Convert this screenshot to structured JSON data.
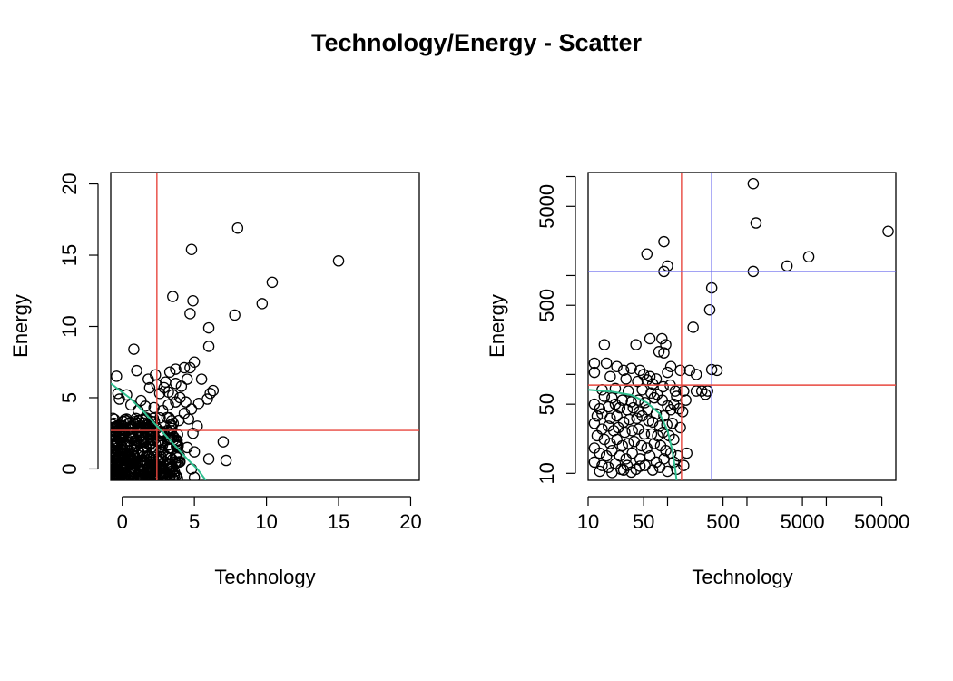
{
  "title": "Technology/Energy - Scatter",
  "colors": {
    "ref_red": "#e8473f",
    "ref_blue": "#6a6aee",
    "curve": "#2fbf8f",
    "axis": "#000000"
  },
  "chart_data": [
    {
      "type": "scatter",
      "scale": "linear",
      "xlabel": "Technology",
      "ylabel": "Energy",
      "xlim": [
        -0.8,
        20.6
      ],
      "ylim": [
        -0.8,
        20.8
      ],
      "xticks": [
        0,
        5,
        10,
        15,
        20
      ],
      "yticks": [
        0,
        5,
        10,
        15,
        20
      ],
      "xtick_labels": [
        "0",
        "5",
        "10",
        "15",
        "20"
      ],
      "ytick_labels": [
        "0",
        "5",
        "10",
        "15",
        "20"
      ],
      "vlines": [
        {
          "x": 2.4,
          "color": "red"
        }
      ],
      "hlines": [
        {
          "y": 2.7,
          "color": "red"
        }
      ],
      "curve": {
        "color": "curve",
        "x": [
          -0.8,
          0.5,
          1.5,
          2.5,
          3.5,
          4.5,
          5.2,
          5.8
        ],
        "y": [
          6.0,
          5.0,
          4.0,
          2.9,
          1.8,
          0.7,
          0.0,
          -0.8
        ]
      },
      "points": [
        [
          15.0,
          14.6
        ],
        [
          8.0,
          16.9
        ],
        [
          4.8,
          15.4
        ],
        [
          10.4,
          13.1
        ],
        [
          3.5,
          12.1
        ],
        [
          9.7,
          11.6
        ],
        [
          4.9,
          11.8
        ],
        [
          4.7,
          10.9
        ],
        [
          7.8,
          10.8
        ],
        [
          6.0,
          9.9
        ],
        [
          6.0,
          8.6
        ],
        [
          0.8,
          8.4
        ],
        [
          1.0,
          6.9
        ],
        [
          -0.4,
          6.5
        ],
        [
          5.0,
          7.5
        ],
        [
          4.7,
          7.1
        ],
        [
          4.3,
          7.1
        ],
        [
          3.7,
          7.0
        ],
        [
          3.3,
          6.8
        ],
        [
          2.3,
          6.6
        ],
        [
          5.5,
          6.3
        ],
        [
          4.5,
          6.3
        ],
        [
          3.0,
          6.1
        ],
        [
          6.3,
          5.5
        ],
        [
          6.1,
          5.3
        ],
        [
          5.9,
          4.9
        ],
        [
          4.0,
          5.0
        ],
        [
          3.7,
          4.7
        ],
        [
          3.2,
          4.5
        ],
        [
          5.3,
          4.6
        ],
        [
          4.8,
          4.2
        ],
        [
          5.2,
          3.0
        ],
        [
          4.9,
          2.5
        ],
        [
          4.6,
          3.5
        ],
        [
          4.3,
          3.9
        ],
        [
          3.8,
          2.0
        ],
        [
          7.0,
          1.9
        ],
        [
          6.0,
          0.7
        ],
        [
          7.2,
          0.6
        ],
        [
          5.0,
          1.2
        ],
        [
          4.5,
          1.5
        ],
        [
          4.0,
          0.5
        ],
        [
          4.8,
          0.0
        ],
        [
          5.0,
          -0.6
        ],
        [
          3.6,
          -0.5
        ],
        [
          0.3,
          5.2
        ],
        [
          1.3,
          4.8
        ],
        [
          1.9,
          5.7
        ],
        [
          2.6,
          5.3
        ],
        [
          2.2,
          4.3
        ],
        [
          2.8,
          4.1
        ],
        [
          3.1,
          3.6
        ],
        [
          1.1,
          4.1
        ],
        [
          0.6,
          4.5
        ],
        [
          -0.3,
          5.3
        ],
        [
          -0.2,
          4.9
        ],
        [
          1.6,
          4.4
        ],
        [
          2.9,
          5.7
        ],
        [
          3.2,
          5.4
        ],
        [
          3.7,
          6.0
        ],
        [
          4.4,
          4.7
        ],
        [
          4.1,
          5.8
        ],
        [
          2.4,
          5.9
        ],
        [
          1.8,
          6.3
        ],
        [
          3.5,
          5.2
        ]
      ],
      "dense_cluster": {
        "x_range": [
          -0.7,
          4.0
        ],
        "y_range": [
          -0.7,
          3.6
        ],
        "count": 420
      }
    },
    {
      "type": "scatter",
      "scale": "log",
      "xlabel": "Technology",
      "ylabel": "Energy",
      "xlim": [
        10,
        75000
      ],
      "ylim": [
        8.5,
        11000
      ],
      "xticks": [
        10,
        50,
        100,
        500,
        1000,
        5000,
        10000,
        50000
      ],
      "yticks": [
        10,
        50,
        100,
        500,
        1000,
        5000,
        10000
      ],
      "xtick_labels": [
        "10",
        "50",
        "",
        "500",
        "",
        "5000",
        "",
        "50000"
      ],
      "ytick_labels": [
        "10",
        "50",
        "",
        "500",
        "",
        "5000",
        ""
      ],
      "vlines": [
        {
          "x": 150,
          "color": "red"
        },
        {
          "x": 360,
          "color": "blue"
        }
      ],
      "hlines": [
        {
          "y": 78,
          "color": "red"
        },
        {
          "y": 1100,
          "color": "blue"
        }
      ],
      "curve": {
        "color": "curve",
        "x": [
          10,
          20,
          35,
          55,
          80,
          100,
          115,
          125,
          130
        ],
        "y": [
          70,
          67,
          62,
          52,
          40,
          27,
          17,
          11,
          8.5
        ]
      },
      "points": [
        [
          1200,
          8500
        ],
        [
          1300,
          3400
        ],
        [
          90,
          2200
        ],
        [
          55,
          1650
        ],
        [
          100,
          1250
        ],
        [
          90,
          1100
        ],
        [
          1200,
          1100
        ],
        [
          3200,
          1250
        ],
        [
          6000,
          1550
        ],
        [
          60000,
          2800
        ],
        [
          360,
          750
        ],
        [
          340,
          450
        ],
        [
          210,
          300
        ],
        [
          16,
          200
        ],
        [
          40,
          200
        ],
        [
          60,
          230
        ],
        [
          85,
          230
        ],
        [
          95,
          200
        ],
        [
          78,
          170
        ],
        [
          90,
          165
        ],
        [
          110,
          120
        ],
        [
          12,
          130
        ],
        [
          17,
          130
        ],
        [
          23,
          120
        ],
        [
          28,
          110
        ],
        [
          35,
          115
        ],
        [
          45,
          110
        ],
        [
          50,
          100
        ],
        [
          60,
          95
        ],
        [
          72,
          90
        ],
        [
          100,
          105
        ],
        [
          145,
          110
        ],
        [
          190,
          110
        ],
        [
          230,
          100
        ],
        [
          420,
          110
        ],
        [
          12,
          105
        ],
        [
          19,
          95
        ],
        [
          30,
          90
        ],
        [
          42,
          85
        ],
        [
          55,
          88
        ],
        [
          65,
          80
        ],
        [
          88,
          75
        ],
        [
          108,
          78
        ],
        [
          125,
          68
        ],
        [
          160,
          68
        ],
        [
          270,
          68
        ],
        [
          300,
          63
        ],
        [
          320,
          68
        ],
        [
          15,
          70
        ],
        [
          22,
          72
        ],
        [
          32,
          68
        ],
        [
          48,
          70
        ],
        [
          62,
          65
        ],
        [
          74,
          63
        ],
        [
          130,
          60
        ],
        [
          170,
          55
        ],
        [
          230,
          68
        ],
        [
          360,
          112
        ],
        [
          16,
          60
        ],
        [
          20,
          58
        ],
        [
          27,
          55
        ],
        [
          35,
          53
        ],
        [
          43,
          55
        ],
        [
          52,
          52
        ],
        [
          68,
          58
        ],
        [
          86,
          55
        ],
        [
          100,
          48
        ],
        [
          120,
          50
        ],
        [
          140,
          45
        ],
        [
          155,
          42
        ],
        [
          12,
          50
        ],
        [
          14,
          45
        ],
        [
          18,
          47
        ],
        [
          22,
          50
        ],
        [
          25,
          46
        ],
        [
          31,
          44
        ],
        [
          37,
          46
        ],
        [
          44,
          42
        ],
        [
          56,
          44
        ],
        [
          72,
          40
        ],
        [
          90,
          38
        ],
        [
          110,
          44
        ],
        [
          13,
          38
        ],
        [
          15,
          40
        ],
        [
          19,
          36
        ],
        [
          23,
          38
        ],
        [
          28,
          33
        ],
        [
          33,
          35
        ],
        [
          41,
          36
        ],
        [
          48,
          38
        ],
        [
          58,
          34
        ],
        [
          65,
          33
        ],
        [
          80,
          30
        ],
        [
          98,
          31
        ],
        [
          115,
          32
        ],
        [
          145,
          29
        ],
        [
          12,
          32
        ],
        [
          15,
          28
        ],
        [
          18,
          30
        ],
        [
          21,
          27
        ],
        [
          24,
          29
        ],
        [
          29,
          26
        ],
        [
          36,
          27
        ],
        [
          43,
          28
        ],
        [
          51,
          25
        ],
        [
          63,
          25
        ],
        [
          75,
          24
        ],
        [
          88,
          26
        ],
        [
          105,
          24
        ],
        [
          120,
          22
        ],
        [
          13,
          24
        ],
        [
          16,
          22
        ],
        [
          19,
          20
        ],
        [
          23,
          22
        ],
        [
          27,
          19
        ],
        [
          32,
          20
        ],
        [
          38,
          21
        ],
        [
          47,
          19
        ],
        [
          55,
          18
        ],
        [
          68,
          20
        ],
        [
          82,
          19
        ],
        [
          95,
          17
        ],
        [
          110,
          16
        ],
        [
          135,
          15
        ],
        [
          175,
          16
        ],
        [
          12,
          18
        ],
        [
          14,
          16
        ],
        [
          17,
          15
        ],
        [
          20,
          17
        ],
        [
          25,
          15
        ],
        [
          30,
          14
        ],
        [
          36,
          16
        ],
        [
          45,
          14
        ],
        [
          60,
          15
        ],
        [
          72,
          13
        ],
        [
          90,
          14
        ],
        [
          120,
          13
        ],
        [
          12,
          13
        ],
        [
          15,
          12
        ],
        [
          18,
          11.5
        ],
        [
          22,
          12.5
        ],
        [
          26,
          11
        ],
        [
          31,
          12
        ],
        [
          40,
          11
        ],
        [
          52,
          12
        ],
        [
          65,
          10.8
        ],
        [
          80,
          11.5
        ],
        [
          100,
          10.5
        ],
        [
          14,
          10.5
        ],
        [
          20,
          10.2
        ],
        [
          28,
          10.8
        ],
        [
          35,
          10.3
        ],
        [
          45,
          11.8
        ],
        [
          130,
          11
        ],
        [
          160,
          12
        ]
      ]
    }
  ]
}
